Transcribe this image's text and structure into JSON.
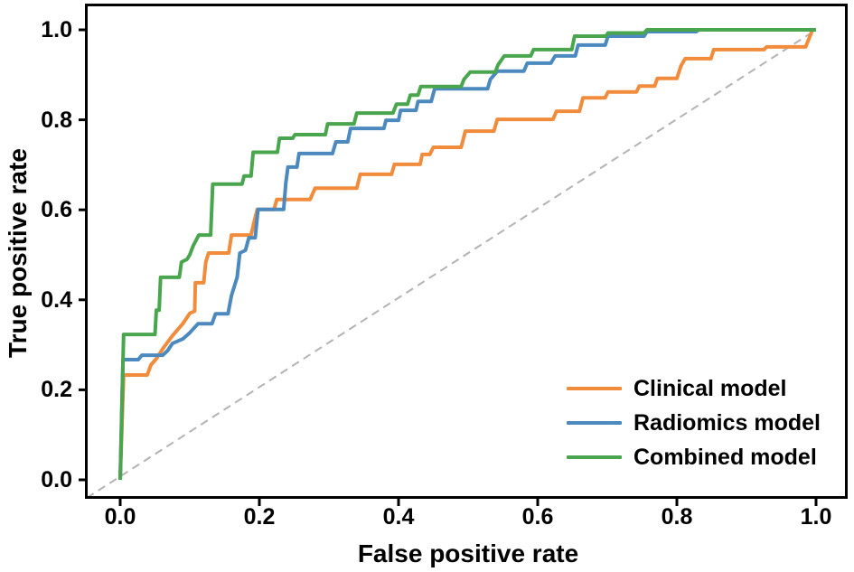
{
  "chart_data": {
    "type": "line",
    "subtype": "roc-curve",
    "title": "",
    "xlabel": "False positive rate",
    "ylabel": "True positive rate",
    "xticks": [
      0.0,
      0.2,
      0.4,
      0.6,
      0.8,
      1.0
    ],
    "yticks": [
      0.0,
      0.2,
      0.4,
      0.6,
      0.8,
      1.0
    ],
    "xlim": [
      -0.05,
      1.09
    ],
    "ylim": [
      -0.06,
      1.06
    ],
    "grid": false,
    "legend_position": "lower right",
    "background_color": "#ffffff",
    "frame_color": "#000000",
    "reference_line": {
      "name": "chance-diagonal",
      "style": "dashed",
      "color": "#b3b3b3",
      "from": [
        0,
        0
      ],
      "to": [
        1,
        1
      ]
    },
    "series": [
      {
        "name": "Clinical model",
        "color": "#F08C3C",
        "points": [
          [
            0,
            0
          ],
          [
            0.005,
            0.233
          ],
          [
            0.039,
            0.233
          ],
          [
            0.044,
            0.255
          ],
          [
            0.052,
            0.269
          ],
          [
            0.062,
            0.293
          ],
          [
            0.075,
            0.32
          ],
          [
            0.09,
            0.347
          ],
          [
            0.1,
            0.37
          ],
          [
            0.107,
            0.375
          ],
          [
            0.108,
            0.438
          ],
          [
            0.12,
            0.438
          ],
          [
            0.123,
            0.484
          ],
          [
            0.127,
            0.504
          ],
          [
            0.156,
            0.504
          ],
          [
            0.16,
            0.544
          ],
          [
            0.188,
            0.544
          ],
          [
            0.192,
            0.57
          ],
          [
            0.197,
            0.601
          ],
          [
            0.221,
            0.601
          ],
          [
            0.225,
            0.623
          ],
          [
            0.273,
            0.623
          ],
          [
            0.28,
            0.648
          ],
          [
            0.34,
            0.648
          ],
          [
            0.345,
            0.679
          ],
          [
            0.39,
            0.679
          ],
          [
            0.394,
            0.701
          ],
          [
            0.431,
            0.701
          ],
          [
            0.434,
            0.723
          ],
          [
            0.445,
            0.723
          ],
          [
            0.45,
            0.739
          ],
          [
            0.49,
            0.739
          ],
          [
            0.496,
            0.775
          ],
          [
            0.537,
            0.775
          ],
          [
            0.542,
            0.801
          ],
          [
            0.622,
            0.801
          ],
          [
            0.627,
            0.819
          ],
          [
            0.66,
            0.819
          ],
          [
            0.665,
            0.849
          ],
          [
            0.697,
            0.849
          ],
          [
            0.701,
            0.862
          ],
          [
            0.742,
            0.862
          ],
          [
            0.746,
            0.875
          ],
          [
            0.768,
            0.875
          ],
          [
            0.772,
            0.892
          ],
          [
            0.8,
            0.892
          ],
          [
            0.806,
            0.92
          ],
          [
            0.812,
            0.936
          ],
          [
            0.849,
            0.936
          ],
          [
            0.853,
            0.956
          ],
          [
            0.925,
            0.956
          ],
          [
            0.929,
            0.962
          ],
          [
            0.985,
            0.962
          ],
          [
            0.995,
            1
          ],
          [
            1,
            1
          ]
        ]
      },
      {
        "name": "Radiomics model",
        "color": "#4C89BE",
        "points": [
          [
            0,
            0
          ],
          [
            0.004,
            0.267
          ],
          [
            0.026,
            0.267
          ],
          [
            0.031,
            0.277
          ],
          [
            0.061,
            0.277
          ],
          [
            0.068,
            0.287
          ],
          [
            0.075,
            0.303
          ],
          [
            0.09,
            0.313
          ],
          [
            0.1,
            0.327
          ],
          [
            0.112,
            0.347
          ],
          [
            0.132,
            0.347
          ],
          [
            0.137,
            0.369
          ],
          [
            0.155,
            0.369
          ],
          [
            0.16,
            0.41
          ],
          [
            0.168,
            0.45
          ],
          [
            0.172,
            0.504
          ],
          [
            0.18,
            0.51
          ],
          [
            0.185,
            0.538
          ],
          [
            0.194,
            0.538
          ],
          [
            0.198,
            0.601
          ],
          [
            0.235,
            0.601
          ],
          [
            0.238,
            0.66
          ],
          [
            0.241,
            0.695
          ],
          [
            0.254,
            0.695
          ],
          [
            0.257,
            0.725
          ],
          [
            0.305,
            0.725
          ],
          [
            0.31,
            0.751
          ],
          [
            0.327,
            0.751
          ],
          [
            0.331,
            0.781
          ],
          [
            0.379,
            0.781
          ],
          [
            0.382,
            0.799
          ],
          [
            0.4,
            0.799
          ],
          [
            0.403,
            0.821
          ],
          [
            0.425,
            0.821
          ],
          [
            0.428,
            0.841
          ],
          [
            0.447,
            0.841
          ],
          [
            0.452,
            0.869
          ],
          [
            0.528,
            0.869
          ],
          [
            0.532,
            0.89
          ],
          [
            0.542,
            0.908
          ],
          [
            0.58,
            0.908
          ],
          [
            0.585,
            0.926
          ],
          [
            0.619,
            0.926
          ],
          [
            0.625,
            0.942
          ],
          [
            0.654,
            0.942
          ],
          [
            0.658,
            0.966
          ],
          [
            0.697,
            0.966
          ],
          [
            0.701,
            0.986
          ],
          [
            0.753,
            0.986
          ],
          [
            0.757,
            0.996
          ],
          [
            0.828,
            0.996
          ],
          [
            0.831,
            1
          ],
          [
            1,
            1
          ]
        ]
      },
      {
        "name": "Combined model",
        "color": "#4AA64E",
        "points": [
          [
            0,
            0
          ],
          [
            0.005,
            0.323
          ],
          [
            0.05,
            0.323
          ],
          [
            0.052,
            0.377
          ],
          [
            0.056,
            0.377
          ],
          [
            0.058,
            0.45
          ],
          [
            0.085,
            0.45
          ],
          [
            0.088,
            0.484
          ],
          [
            0.096,
            0.49
          ],
          [
            0.1,
            0.5
          ],
          [
            0.105,
            0.52
          ],
          [
            0.113,
            0.544
          ],
          [
            0.13,
            0.544
          ],
          [
            0.133,
            0.657
          ],
          [
            0.175,
            0.657
          ],
          [
            0.178,
            0.675
          ],
          [
            0.188,
            0.675
          ],
          [
            0.191,
            0.728
          ],
          [
            0.226,
            0.728
          ],
          [
            0.229,
            0.759
          ],
          [
            0.248,
            0.759
          ],
          [
            0.251,
            0.767
          ],
          [
            0.295,
            0.767
          ],
          [
            0.298,
            0.791
          ],
          [
            0.336,
            0.791
          ],
          [
            0.34,
            0.815
          ],
          [
            0.392,
            0.815
          ],
          [
            0.397,
            0.835
          ],
          [
            0.413,
            0.835
          ],
          [
            0.417,
            0.855
          ],
          [
            0.428,
            0.855
          ],
          [
            0.432,
            0.874
          ],
          [
            0.49,
            0.874
          ],
          [
            0.494,
            0.89
          ],
          [
            0.503,
            0.906
          ],
          [
            0.539,
            0.906
          ],
          [
            0.543,
            0.922
          ],
          [
            0.552,
            0.942
          ],
          [
            0.59,
            0.942
          ],
          [
            0.594,
            0.956
          ],
          [
            0.649,
            0.956
          ],
          [
            0.653,
            0.986
          ],
          [
            0.698,
            0.986
          ],
          [
            0.701,
            0.993
          ],
          [
            0.753,
            0.993
          ],
          [
            0.757,
            1
          ],
          [
            1,
            1
          ]
        ]
      }
    ]
  },
  "legend": {
    "items": [
      {
        "label": "Clinical model"
      },
      {
        "label": "Radiomics model"
      },
      {
        "label": "Combined model"
      }
    ]
  }
}
